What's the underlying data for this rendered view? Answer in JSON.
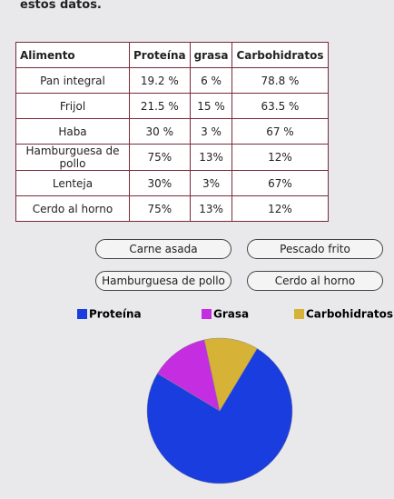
{
  "header": {
    "text": "estos datos."
  },
  "table": {
    "columns": [
      "Alimento",
      "Proteína",
      "grasa",
      "Carbohidratos"
    ],
    "rows": [
      [
        "Pan integral",
        "19.2 %",
        "6 %",
        "78.8 %"
      ],
      [
        "Frijol",
        "21.5 %",
        "15 %",
        "63.5 %"
      ],
      [
        "Haba",
        "30 %",
        "3 %",
        "67 %"
      ],
      [
        "Hamburguesa de pollo",
        "75%",
        "13%",
        "12%"
      ],
      [
        "Lenteja",
        "30%",
        "3%",
        "67%"
      ],
      [
        "Cerdo al horno",
        "75%",
        "13%",
        "12%"
      ]
    ]
  },
  "options": [
    "Carne asada",
    "Pescado frito",
    "Hamburguesa de pollo",
    "Cerdo al horno"
  ],
  "chart_data": {
    "type": "pie",
    "categories": [
      "Proteína",
      "Grasa",
      "Carbohidratos"
    ],
    "values": [
      75,
      13,
      12
    ],
    "colors": [
      "#1a3de0",
      "#c42ee0",
      "#d6b236"
    ]
  }
}
